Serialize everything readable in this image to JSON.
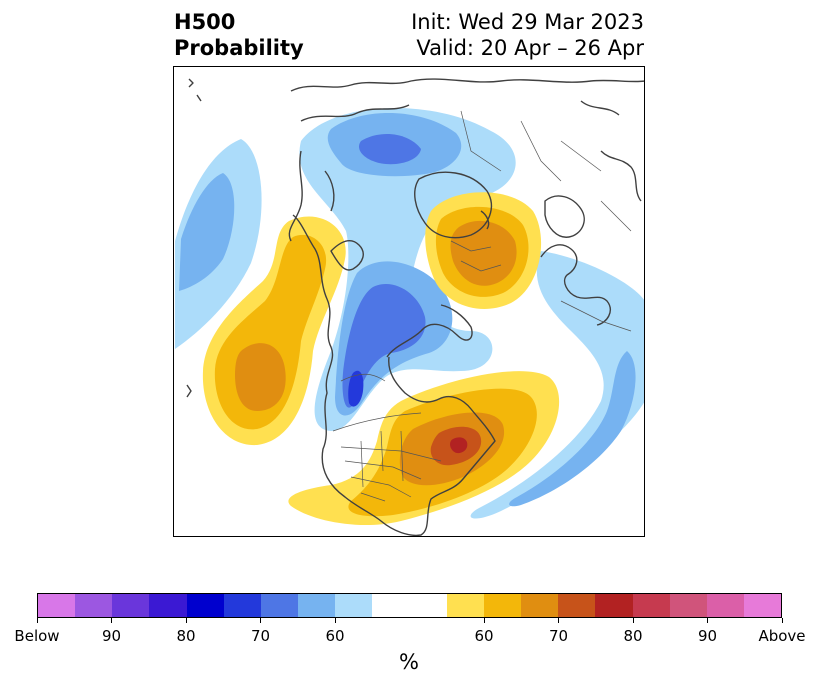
{
  "header": {
    "field": "H500",
    "product": "Probability",
    "init": "Init: Wed 29 Mar 2023",
    "valid": "Valid: 20 Apr – 26 Apr"
  },
  "colorbar": {
    "colors": [
      "#d877e8",
      "#9c57e1",
      "#6a36db",
      "#3b19d3",
      "#0000ce",
      "#2339db",
      "#4e76e5",
      "#76b3f0",
      "#acdcfa",
      "#ffffff",
      "#ffffff",
      "#ffe050",
      "#f3b70a",
      "#e08e11",
      "#c7531a",
      "#b22222",
      "#c63a4f",
      "#d0547b",
      "#db5fa8",
      "#e77ad9"
    ],
    "tick_labels": [
      "Below",
      "90",
      "80",
      "70",
      "60",
      "60",
      "70",
      "80",
      "90",
      "Above"
    ],
    "units": "%"
  },
  "map": {
    "legend_colors": {
      "blue_light": "#acdcfa",
      "blue_mid": "#76b3f0",
      "blue_dark": "#4e76e5",
      "blue_deep": "#2339db",
      "orange_light": "#ffe050",
      "orange_mid": "#f3b70a",
      "orange_dark": "#e08e11",
      "orange_deep": "#c7531a",
      "red": "#b22222",
      "coastline": "#404040"
    }
  }
}
